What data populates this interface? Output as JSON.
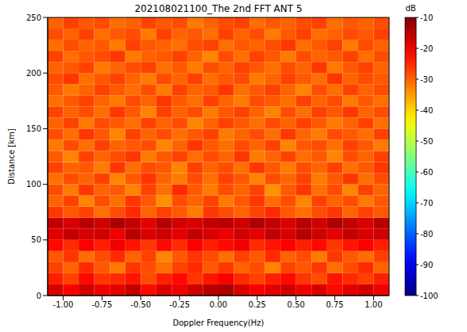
{
  "chart_data": {
    "type": "heatmap",
    "title": "202108021100_The 2nd FFT ANT 5",
    "x_label": "Doppler Frequency(Hz)",
    "y_label": "Distance [km]",
    "xlim": [
      -1.1,
      1.1
    ],
    "ylim": [
      0,
      250
    ],
    "xticks": [
      {
        "value": -1,
        "label": "-1.00"
      },
      {
        "value": -0.75,
        "label": "-0.75"
      },
      {
        "value": -0.5,
        "label": "-0.50"
      },
      {
        "value": -0.25,
        "label": "-0.25"
      },
      {
        "value": 0,
        "label": "0.00"
      },
      {
        "value": 0.25,
        "label": "0.25"
      },
      {
        "value": 0.5,
        "label": "0.50"
      },
      {
        "value": 0.75,
        "label": "0.75"
      },
      {
        "value": 1,
        "label": "1.00"
      }
    ],
    "yticks": [
      0,
      50,
      100,
      150,
      200,
      250
    ],
    "x_bins": [
      -1.1,
      -1.0,
      -0.9,
      -0.8,
      -0.7,
      -0.6,
      -0.5,
      -0.4,
      -0.3,
      -0.2,
      -0.1,
      0,
      0.1,
      0.2,
      0.3,
      0.4,
      0.5,
      0.6,
      0.7,
      0.8,
      0.9,
      1.0,
      1.1
    ],
    "y_bins": [
      0,
      10,
      20,
      30,
      40,
      50,
      60,
      70,
      80,
      90,
      100,
      110,
      120,
      130,
      140,
      150,
      160,
      170,
      180,
      190,
      200,
      210,
      220,
      230,
      240,
      250
    ],
    "cells": [
      [
        -18,
        -21,
        -17,
        -20,
        -19,
        -16,
        -22,
        -18,
        -20,
        -17,
        -15,
        -14,
        -18,
        -21,
        -19,
        -17,
        -20,
        -18,
        -22,
        -19,
        -17,
        -20
      ],
      [
        -24,
        -27,
        -22,
        -26,
        -25,
        -23,
        -28,
        -24,
        -22,
        -26,
        -23,
        -21,
        -25,
        -27,
        -24,
        -22,
        -26,
        -28,
        -23,
        -25,
        -27,
        -24
      ],
      [
        -27,
        -30,
        -25,
        -29,
        -32,
        -26,
        -28,
        -31,
        -27,
        -25,
        -29,
        -26,
        -30,
        -28,
        -33,
        -27,
        -29,
        -26,
        -31,
        -28,
        -25,
        -30
      ],
      [
        -29,
        -26,
        -31,
        -28,
        -25,
        -30,
        -27,
        -33,
        -29,
        -26,
        -28,
        -31,
        -27,
        -29,
        -25,
        -30,
        -28,
        -32,
        -26,
        -29,
        -31,
        -27
      ],
      [
        -22,
        -25,
        -21,
        -24,
        -20,
        -23,
        -26,
        -22,
        -25,
        -21,
        -24,
        -22,
        -20,
        -25,
        -23,
        -21,
        -24,
        -22,
        -26,
        -23,
        -21,
        -24
      ],
      [
        -19,
        -16,
        -18,
        -17,
        -20,
        -15,
        -18,
        -17,
        -19,
        -16,
        -18,
        -20,
        -17,
        -19,
        -16,
        -18,
        -15,
        -17,
        -19,
        -16,
        -18,
        -17
      ],
      [
        -16,
        -18,
        -15,
        -17,
        -14,
        -16,
        -19,
        -15,
        -17,
        -18,
        -16,
        -15,
        -17,
        -14,
        -16,
        -18,
        -15,
        -17,
        -14,
        -16,
        -18,
        -15
      ],
      [
        -26,
        -29,
        -27,
        -31,
        -28,
        -25,
        -30,
        -27,
        -29,
        -32,
        -26,
        -28,
        -30,
        -27,
        -25,
        -29,
        -31,
        -28,
        -26,
        -30,
        -27,
        -29
      ],
      [
        -30,
        -27,
        -33,
        -28,
        -31,
        -26,
        -29,
        -34,
        -28,
        -30,
        -27,
        -32,
        -29,
        -26,
        -31,
        -28,
        -33,
        -27,
        -30,
        -28,
        -32,
        -29
      ],
      [
        -28,
        -32,
        -26,
        -30,
        -29,
        -33,
        -27,
        -31,
        -25,
        -29,
        -32,
        -28,
        -30,
        -27,
        -34,
        -29,
        -26,
        -31,
        -28,
        -33,
        -27,
        -30
      ],
      [
        -31,
        -28,
        -30,
        -27,
        -33,
        -29,
        -26,
        -30,
        -32,
        -28,
        -31,
        -27,
        -29,
        -33,
        -28,
        -30,
        -27,
        -32,
        -29,
        -26,
        -31,
        -28
      ],
      [
        -27,
        -30,
        -29,
        -32,
        -26,
        -31,
        -28,
        -29,
        -33,
        -27,
        -30,
        -28,
        -31,
        -26,
        -29,
        -32,
        -28,
        -30,
        -27,
        -31,
        -29,
        -26
      ],
      [
        -29,
        -33,
        -27,
        -30,
        -28,
        -26,
        -32,
        -29,
        -27,
        -31,
        -28,
        -30,
        -26,
        -32,
        -30,
        -27,
        -31,
        -29,
        -33,
        -28,
        -30,
        -27
      ],
      [
        -32,
        -28,
        -31,
        -27,
        -30,
        -29,
        -28,
        -33,
        -30,
        -26,
        -29,
        -31,
        -28,
        -30,
        -27,
        -33,
        -29,
        -28,
        -31,
        -27,
        -29,
        -32
      ],
      [
        -28,
        -31,
        -26,
        -29,
        -33,
        -27,
        -30,
        -28,
        -31,
        -29,
        -27,
        -32,
        -30,
        -28,
        -31,
        -26,
        -30,
        -32,
        -28,
        -29,
        -31,
        -27
      ],
      [
        -30,
        -27,
        -32,
        -28,
        -29,
        -31,
        -27,
        -30,
        -28,
        -33,
        -30,
        -27,
        -29,
        -31,
        -28,
        -30,
        -27,
        -29,
        -32,
        -30,
        -27,
        -31
      ],
      [
        -27,
        -30,
        -28,
        -31,
        -26,
        -29,
        -33,
        -27,
        -30,
        -28,
        -32,
        -29,
        -27,
        -30,
        -33,
        -28,
        -31,
        -27,
        -29,
        -26,
        -30,
        -28
      ],
      [
        -31,
        -29,
        -27,
        -30,
        -32,
        -28,
        -30,
        -26,
        -29,
        -31,
        -27,
        -30,
        -32,
        -28,
        -29,
        -31,
        -27,
        -30,
        -28,
        -32,
        -29,
        -31
      ],
      [
        -29,
        -32,
        -30,
        -27,
        -29,
        -31,
        -28,
        -32,
        -27,
        -30,
        -29,
        -26,
        -31,
        -29,
        -27,
        -30,
        -33,
        -28,
        -31,
        -27,
        -30,
        -28
      ],
      [
        -28,
        -26,
        -31,
        -29,
        -27,
        -30,
        -32,
        -28,
        -30,
        -27,
        -31,
        -29,
        -28,
        -32,
        -30,
        -27,
        -29,
        -31,
        -26,
        -30,
        -28,
        -29
      ],
      [
        -30,
        -29,
        -27,
        -32,
        -30,
        -28,
        -27,
        -31,
        -29,
        -32,
        -28,
        -30,
        -27,
        -29,
        -31,
        -28,
        -30,
        -26,
        -32,
        -29,
        -27,
        -30
      ],
      [
        -27,
        -31,
        -29,
        -28,
        -26,
        -32,
        -30,
        -29,
        -27,
        -30,
        -33,
        -28,
        -31,
        -27,
        -29,
        -32,
        -28,
        -30,
        -29,
        -27,
        -31,
        -28
      ],
      [
        -31,
        -28,
        -30,
        -29,
        -32,
        -27,
        -29,
        -30,
        -31,
        -28,
        -27,
        -31,
        -29,
        -30,
        -28,
        -26,
        -31,
        -29,
        -27,
        -32,
        -28,
        -30
      ],
      [
        -28,
        -30,
        -27,
        -31,
        -29,
        -28,
        -32,
        -27,
        -30,
        -29,
        -31,
        -27,
        -30,
        -28,
        -32,
        -29,
        -27,
        -31,
        -30,
        -28,
        -29,
        -27
      ],
      [
        -30,
        -27,
        -29,
        -28,
        -31,
        -30,
        -27,
        -29,
        -28,
        -32,
        -30,
        -28,
        -27,
        -31,
        -29,
        -30,
        -28,
        -27,
        -31,
        -29,
        -30,
        -28
      ]
    ],
    "colorbar": {
      "label": "dB",
      "range": [
        -100,
        -10
      ],
      "ticks": [
        -10,
        -20,
        -30,
        -40,
        -50,
        -60,
        -70,
        -80,
        -90,
        -100
      ]
    }
  }
}
